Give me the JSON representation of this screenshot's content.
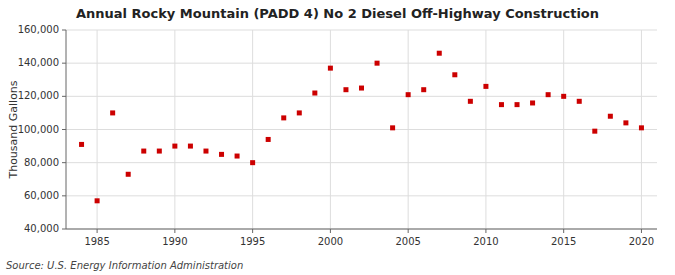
{
  "chart_data": {
    "type": "scatter",
    "title": "Annual Rocky Mountain (PADD 4) No 2 Diesel Off-Highway Construction",
    "ylabel": "Thousand Gallons",
    "source": "Source: U.S. Energy Information Administration",
    "x": [
      1984,
      1985,
      1986,
      1987,
      1988,
      1989,
      1990,
      1991,
      1992,
      1993,
      1994,
      1995,
      1996,
      1997,
      1998,
      1999,
      2000,
      2001,
      2002,
      2003,
      2004,
      2005,
      2006,
      2007,
      2008,
      2009,
      2010,
      2011,
      2012,
      2013,
      2014,
      2015,
      2016,
      2017,
      2018,
      2019,
      2020
    ],
    "values": [
      91000,
      57000,
      110000,
      73000,
      87000,
      87000,
      90000,
      90000,
      87000,
      85000,
      84000,
      80000,
      94000,
      107000,
      110000,
      122000,
      137000,
      124000,
      125000,
      140000,
      101000,
      121000,
      124000,
      146000,
      133000,
      117000,
      126000,
      115000,
      115000,
      116000,
      121000,
      120000,
      117000,
      99000,
      108000,
      104000,
      101000
    ],
    "color": "#cc0000",
    "marker": "square",
    "xlim": [
      1983,
      2021
    ],
    "ylim": [
      40000,
      160000
    ],
    "xticks": [
      1985,
      1990,
      1995,
      2000,
      2005,
      2010,
      2015,
      2020
    ],
    "yticks": [
      {
        "value": 40000,
        "label": "40,000"
      },
      {
        "value": 60000,
        "label": "60,000"
      },
      {
        "value": 80000,
        "label": "80,000"
      },
      {
        "value": 100000,
        "label": "100,000"
      },
      {
        "value": 120000,
        "label": "120,000"
      },
      {
        "value": 140000,
        "label": "140,000"
      },
      {
        "value": 160000,
        "label": "160,000"
      }
    ],
    "grid": true
  }
}
